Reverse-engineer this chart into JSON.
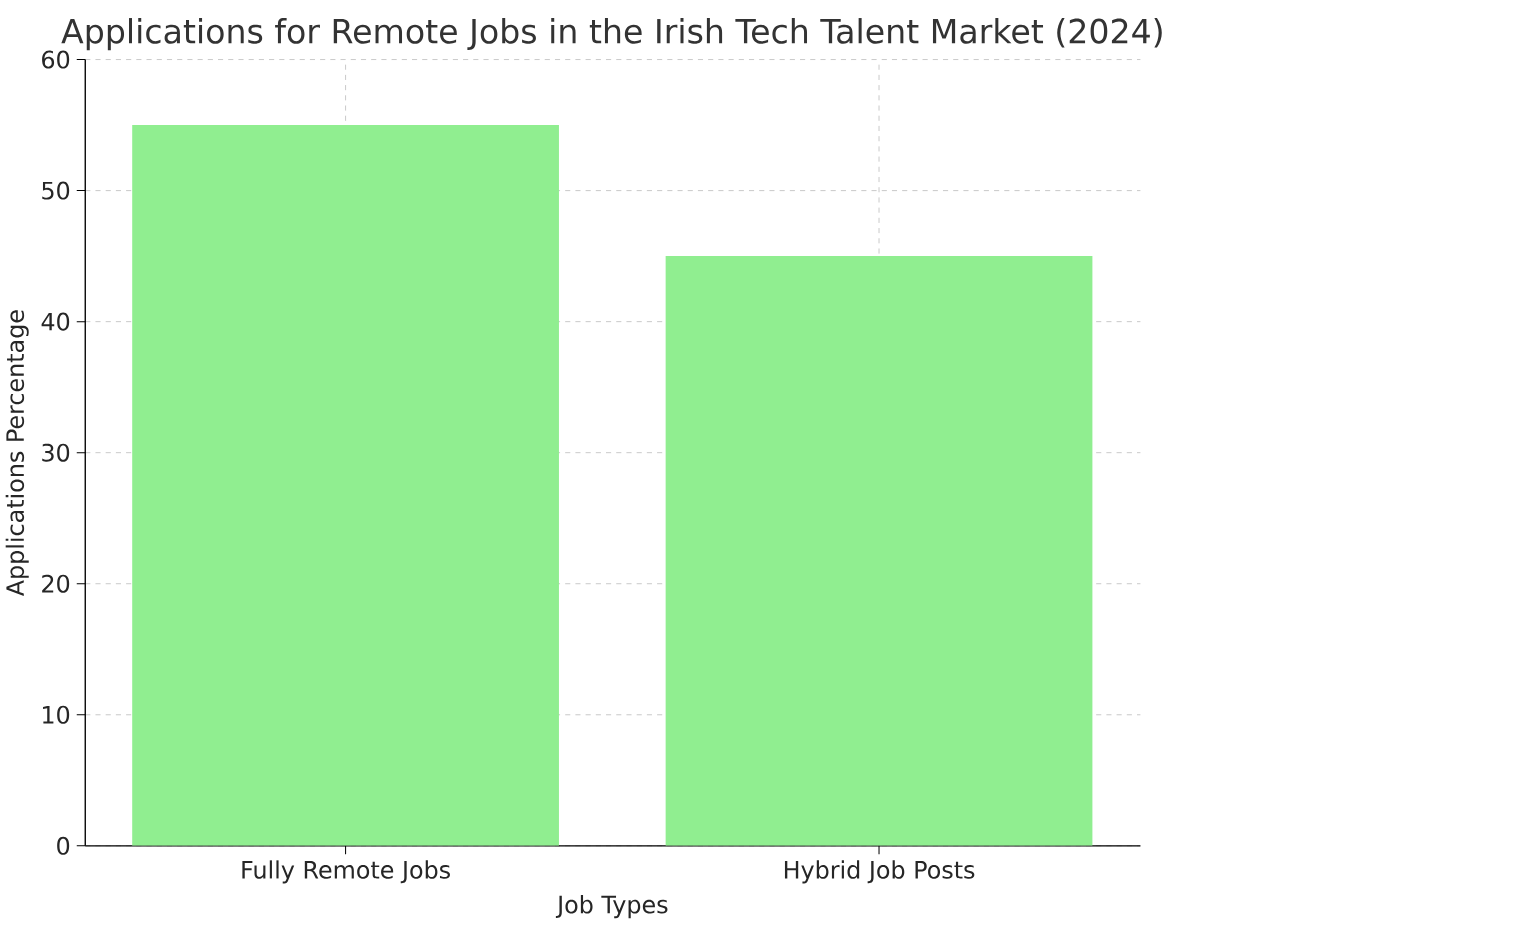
{
  "chart_data": {
    "type": "bar",
    "title": "Applications for Remote Jobs in the Irish Tech Talent Market (2024)",
    "xlabel": "Job Types",
    "ylabel": "Applications Percentage",
    "categories": [
      "Fully Remote Jobs",
      "Hybrid Job Posts"
    ],
    "values": [
      55,
      45
    ],
    "color": "#90ee90",
    "ylim": [
      0,
      60
    ],
    "yticks": [
      0,
      10,
      20,
      30,
      40,
      50,
      60
    ],
    "grid": true
  }
}
